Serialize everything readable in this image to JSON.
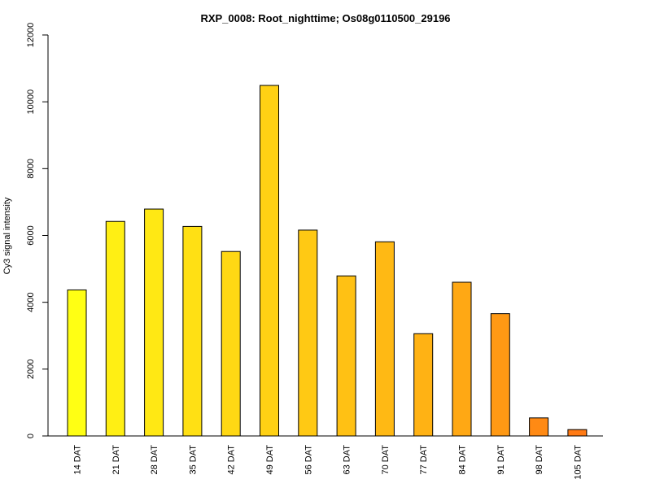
{
  "chart_data": {
    "type": "bar",
    "title": "RXP_0008: Root_nighttime; Os08g0110500_29196",
    "xlabel": "",
    "ylabel": "Cy3 signal intensity",
    "ylim": [
      0,
      12000
    ],
    "yticks": [
      0,
      2000,
      4000,
      6000,
      8000,
      10000,
      12000
    ],
    "categories": [
      "14 DAT",
      "21 DAT",
      "28 DAT",
      "35 DAT",
      "42 DAT",
      "49 DAT",
      "56 DAT",
      "63 DAT",
      "70 DAT",
      "77 DAT",
      "84 DAT",
      "91 DAT",
      "98 DAT",
      "105 DAT"
    ],
    "values": [
      4370,
      6420,
      6790,
      6270,
      5520,
      10490,
      6160,
      4790,
      5810,
      3060,
      4600,
      3660,
      540,
      190
    ],
    "colors": [
      "#FFFF14",
      "#FFEF14",
      "#FFE814",
      "#FFE014",
      "#FFD814",
      "#FFD114",
      "#FFC914",
      "#FFC114",
      "#FFB914",
      "#FFB214",
      "#FFA814",
      "#FF9914",
      "#FF8A14",
      "#FF7A14"
    ],
    "grid": false,
    "legend": "none"
  }
}
